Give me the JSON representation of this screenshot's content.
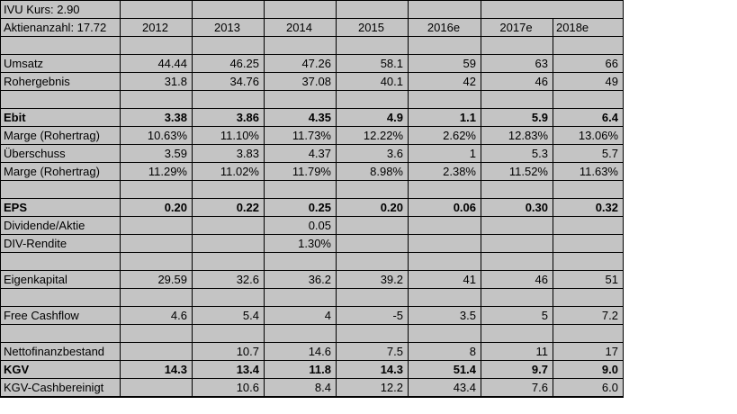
{
  "app": {
    "kind": "spreadsheet-financial-table"
  },
  "colors": {
    "cell_background": "#c4c4c4",
    "grid_border": "#000000",
    "accent_blue": "#1f7cc1",
    "accent_red": "#c00000",
    "canvas_background": "#ffffff"
  },
  "table": {
    "info_rows": [
      "IVU Kurs: 2.90",
      "Aktienanzahl: 17.72"
    ],
    "columns": [
      "2012",
      "2013",
      "2014",
      "2015",
      "2016e",
      "2017e",
      "2018e"
    ],
    "rows": [
      {
        "label": "",
        "style": "normal",
        "values": [
          "",
          "",
          "",
          "",
          "",
          "",
          ""
        ]
      },
      {
        "label": "Umsatz",
        "style": "blue",
        "values": [
          "44.44",
          "46.25",
          "47.26",
          "58.1",
          "59",
          "63",
          "66"
        ]
      },
      {
        "label": "Rohergebnis",
        "style": "blue",
        "values": [
          "31.8",
          "34.76",
          "37.08",
          "40.1",
          "42",
          "46",
          "49"
        ]
      },
      {
        "label": "",
        "style": "normal",
        "values": [
          "",
          "",
          "",
          "",
          "",
          "",
          ""
        ]
      },
      {
        "label": "Ebit",
        "style": "red-bold",
        "values": [
          "3.38",
          "3.86",
          "4.35",
          "4.9",
          "1.1",
          "5.9",
          "6.4"
        ]
      },
      {
        "label": "Marge (Rohertrag)",
        "style": "normal",
        "values": [
          "10.63%",
          "11.10%",
          "11.73%",
          "12.22%",
          "2.62%",
          "12.83%",
          "13.06%"
        ]
      },
      {
        "label": "Überschuss",
        "style": "red",
        "values": [
          "3.59",
          "3.83",
          "4.37",
          "3.6",
          "1",
          "5.3",
          "5.7"
        ]
      },
      {
        "label": "Marge (Rohertrag)",
        "style": "normal",
        "values": [
          "11.29%",
          "11.02%",
          "11.79%",
          "8.98%",
          "2.38%",
          "11.52%",
          "11.63%"
        ]
      },
      {
        "label": "",
        "style": "normal",
        "values": [
          "",
          "",
          "",
          "",
          "",
          "",
          ""
        ]
      },
      {
        "label": "EPS",
        "style": "red-bold",
        "values": [
          "0.20",
          "0.22",
          "0.25",
          "0.20",
          "0.06",
          "0.30",
          "0.32"
        ]
      },
      {
        "label": "Dividende/Aktie",
        "style": "normal",
        "values": [
          "",
          "",
          "0.05",
          "",
          "",
          "",
          ""
        ]
      },
      {
        "label": "DIV-Rendite",
        "style": "normal",
        "values": [
          "",
          "",
          "1.30%",
          "",
          "",
          "",
          ""
        ]
      },
      {
        "label": "",
        "style": "normal",
        "values": [
          "",
          "",
          "",
          "",
          "",
          "",
          ""
        ]
      },
      {
        "label": "Eigenkapital",
        "style": "normal",
        "values": [
          "29.59",
          "32.6",
          "36.2",
          "39.2",
          "41",
          "46",
          "51"
        ]
      },
      {
        "label": "",
        "style": "normal",
        "values": [
          "",
          "",
          "",
          "",
          "",
          "",
          ""
        ]
      },
      {
        "label": "Free Cashflow",
        "style": "normal",
        "values": [
          "4.6",
          "5.4",
          "4",
          "-5",
          "3.5",
          "5",
          "7.2"
        ]
      },
      {
        "label": "",
        "style": "normal",
        "values": [
          "",
          "",
          "",
          "",
          "",
          "",
          ""
        ]
      },
      {
        "label": "Nettofinanzbestand",
        "style": "normal",
        "values": [
          "",
          "10.7",
          "14.6",
          "7.5",
          "8",
          "11",
          "17"
        ]
      },
      {
        "label": "KGV",
        "style": "red-bold",
        "values": [
          "14.3",
          "13.4",
          "11.8",
          "14.3",
          "51.4",
          "9.7",
          "9.0"
        ]
      },
      {
        "label": "KGV-Cashbereinigt",
        "style": "red",
        "values": [
          "",
          "10.6",
          "8.4",
          "12.2",
          "43.4",
          "7.6",
          "6.0"
        ]
      }
    ]
  }
}
